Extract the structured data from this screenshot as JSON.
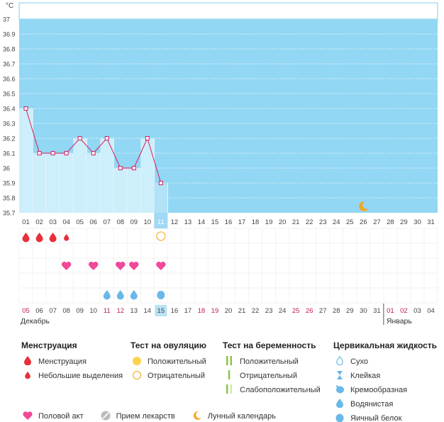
{
  "chart_data": {
    "type": "line",
    "ylabel": "°C",
    "ylim": [
      35.7,
      37.0
    ],
    "yticks": [
      "35.7",
      "35.8",
      "35.9",
      "36",
      "36.1",
      "36.2",
      "36.3",
      "36.4",
      "36.5",
      "36.6",
      "36.7",
      "36.8",
      "36.9",
      "37"
    ],
    "cycle_days": [
      "01",
      "02",
      "03",
      "04",
      "05",
      "06",
      "07",
      "08",
      "09",
      "10",
      "11",
      "12",
      "13",
      "14",
      "15",
      "16",
      "17",
      "18",
      "19",
      "20",
      "21",
      "22",
      "23",
      "24",
      "25",
      "26",
      "27",
      "28",
      "29",
      "30",
      "31"
    ],
    "temperatures": [
      36.4,
      36.1,
      36.1,
      36.1,
      36.2,
      36.1,
      36.2,
      36.0,
      36.0,
      36.2,
      35.9
    ],
    "current_day_index": 10,
    "moon_day_index": 25,
    "menstruation": [
      2,
      2,
      2,
      1,
      0,
      0,
      0,
      0,
      0,
      0,
      0
    ],
    "ovulation_test": [
      0,
      0,
      0,
      0,
      0,
      0,
      0,
      0,
      0,
      0,
      2
    ],
    "intercourse": [
      0,
      0,
      0,
      1,
      0,
      1,
      0,
      1,
      1,
      0,
      1
    ],
    "cervical_fluid": [
      0,
      0,
      0,
      0,
      0,
      0,
      1,
      1,
      1,
      0,
      2
    ],
    "dates": [
      {
        "d": "05",
        "red": true
      },
      {
        "d": "06"
      },
      {
        "d": "07"
      },
      {
        "d": "08"
      },
      {
        "d": "09"
      },
      {
        "d": "10"
      },
      {
        "d": "11",
        "red": true
      },
      {
        "d": "12",
        "red": true
      },
      {
        "d": "13"
      },
      {
        "d": "14"
      },
      {
        "d": "15",
        "today": true
      },
      {
        "d": "16"
      },
      {
        "d": "17"
      },
      {
        "d": "18",
        "red": true
      },
      {
        "d": "19",
        "red": true
      },
      {
        "d": "20"
      },
      {
        "d": "21"
      },
      {
        "d": "22"
      },
      {
        "d": "23"
      },
      {
        "d": "24"
      },
      {
        "d": "25",
        "red": true
      },
      {
        "d": "26",
        "red": true
      },
      {
        "d": "27"
      },
      {
        "d": "28"
      },
      {
        "d": "29"
      },
      {
        "d": "30"
      },
      {
        "d": "31"
      },
      {
        "d": "01",
        "red": true
      },
      {
        "d": "02",
        "red": true
      },
      {
        "d": "03"
      },
      {
        "d": "04"
      }
    ],
    "month_start": "Декабрь",
    "month_next": "Январь",
    "month_next_index": 27
  },
  "colors": {
    "sky": "#92d7f3",
    "bar": "#cdeefb",
    "bar_today": "#b2e2f6",
    "line": "#d81b60",
    "blood": "#e8303a",
    "heart": "#f0499a",
    "drop": "#69b8ea",
    "ovul_pos": "#fcd34d",
    "ovul_neg": "#f5b642",
    "preg": "#8bc34a",
    "preg_weak": "#d2e8a2",
    "moon": "#f5a623",
    "pill": "#bbbbbb",
    "red_date": "#c2185b"
  },
  "legend": {
    "menstruation": {
      "title": "Менструация",
      "items": [
        "Менструация",
        "Небольшие выделения"
      ]
    },
    "ovulation": {
      "title": "Тест на овуляцию",
      "items": [
        "Положительный",
        "Отрицательный"
      ]
    },
    "pregnancy": {
      "title": "Тест на беременность",
      "items": [
        "Положительный",
        "Отрицательный",
        "Слабоположительный"
      ]
    },
    "cervical": {
      "title": "Цервикальная жидкость",
      "items": [
        "Сухо",
        "Клейкая",
        "Кремообразная",
        "Водянистая",
        "Яичный белок"
      ]
    },
    "bottom": [
      "Половой акт",
      "Прием лекарств",
      "Лунный календарь"
    ]
  }
}
